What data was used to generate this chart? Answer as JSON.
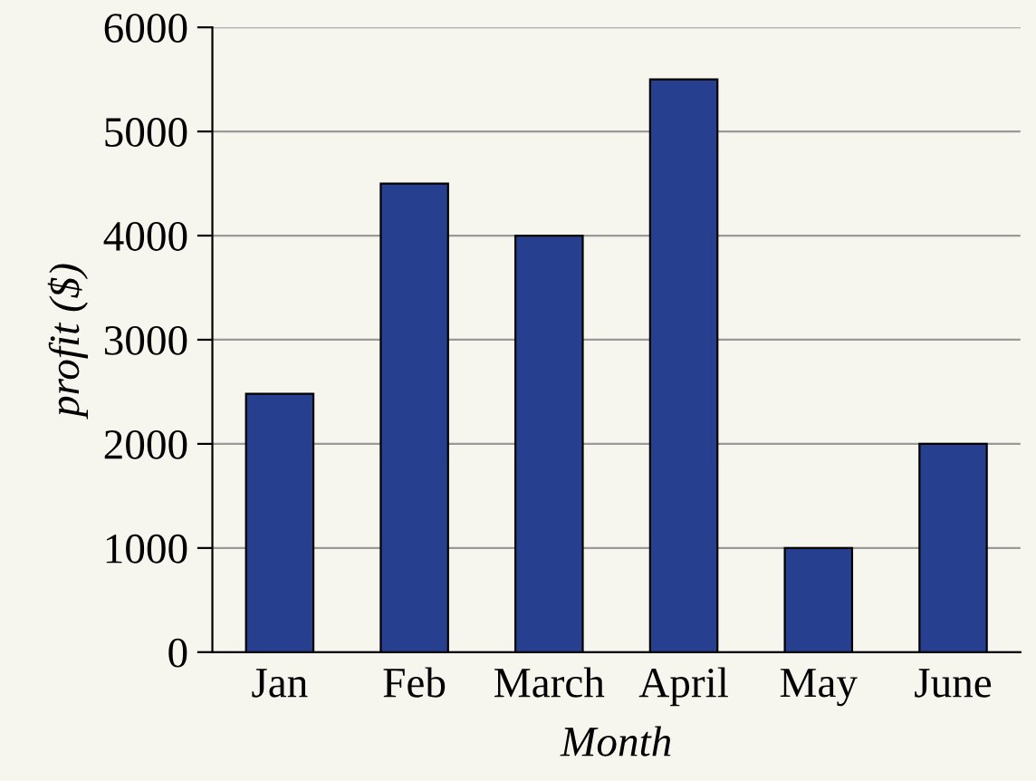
{
  "chart_data": {
    "type": "bar",
    "xlabel": "Month",
    "ylabel": "profit ($)",
    "categories": [
      "Jan",
      "Feb",
      "March",
      "April",
      "May",
      "June"
    ],
    "values": [
      2480,
      4500,
      4000,
      5500,
      1000,
      2000
    ],
    "color": "#26408f",
    "ylim": [
      0,
      6000
    ],
    "yticks": [
      0,
      1000,
      2000,
      3000,
      4000,
      5000,
      6000
    ],
    "grid": "y"
  }
}
